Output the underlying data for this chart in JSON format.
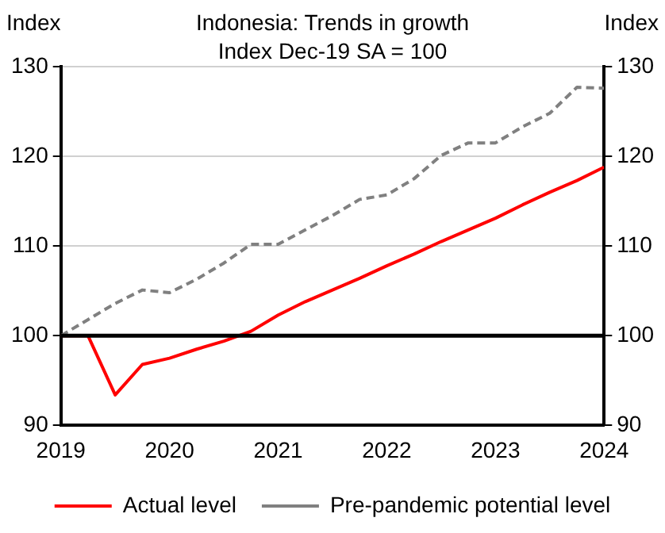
{
  "chart_data": {
    "type": "line",
    "title": "Indonesia: Trends in growth",
    "subtitle": "Index Dec-19 SA = 100",
    "ylabel": "Index",
    "y2label": "Index",
    "x": [
      2019,
      2019.25,
      2019.5,
      2019.75,
      2020,
      2020.25,
      2020.5,
      2020.75,
      2021,
      2021.25,
      2021.5,
      2021.75,
      2022,
      2022.25,
      2022.5,
      2022.75,
      2023,
      2023.25,
      2023.5,
      2023.75,
      2024
    ],
    "series": [
      {
        "name": "Actual level",
        "color": "#ff0000",
        "line_style": "solid",
        "values": [
          100,
          100,
          93.4,
          96.8,
          97.5,
          98.5,
          99.4,
          100.5,
          102.3,
          103.8,
          105.1,
          106.4,
          107.8,
          109.1,
          110.5,
          111.8,
          113.1,
          114.6,
          116,
          117.3,
          118.8
        ]
      },
      {
        "name": "Pre-pandemic potential level",
        "color": "#808080",
        "line_style": "dashed",
        "values": [
          100,
          101.8,
          103.6,
          105.1,
          104.8,
          106.3,
          108.1,
          110.2,
          110.2,
          111.8,
          113.4,
          115.2,
          115.7,
          117.5,
          120.1,
          121.5,
          121.5,
          123.3,
          124.8,
          127.7,
          127.6
        ]
      }
    ],
    "xlim": [
      2019,
      2024
    ],
    "xticks": [
      2019,
      2020,
      2021,
      2022,
      2023,
      2024
    ],
    "ylim": [
      90,
      130
    ],
    "yticks": [
      90,
      100,
      110,
      120,
      130
    ],
    "y2lim": [
      90,
      130
    ],
    "y2ticks": [
      90,
      100,
      110,
      120,
      130
    ],
    "ref_lines": [
      {
        "axis": "y",
        "value": 100,
        "color": "#000000"
      }
    ],
    "grid": "y",
    "legend": "bottom",
    "marker": "none"
  }
}
